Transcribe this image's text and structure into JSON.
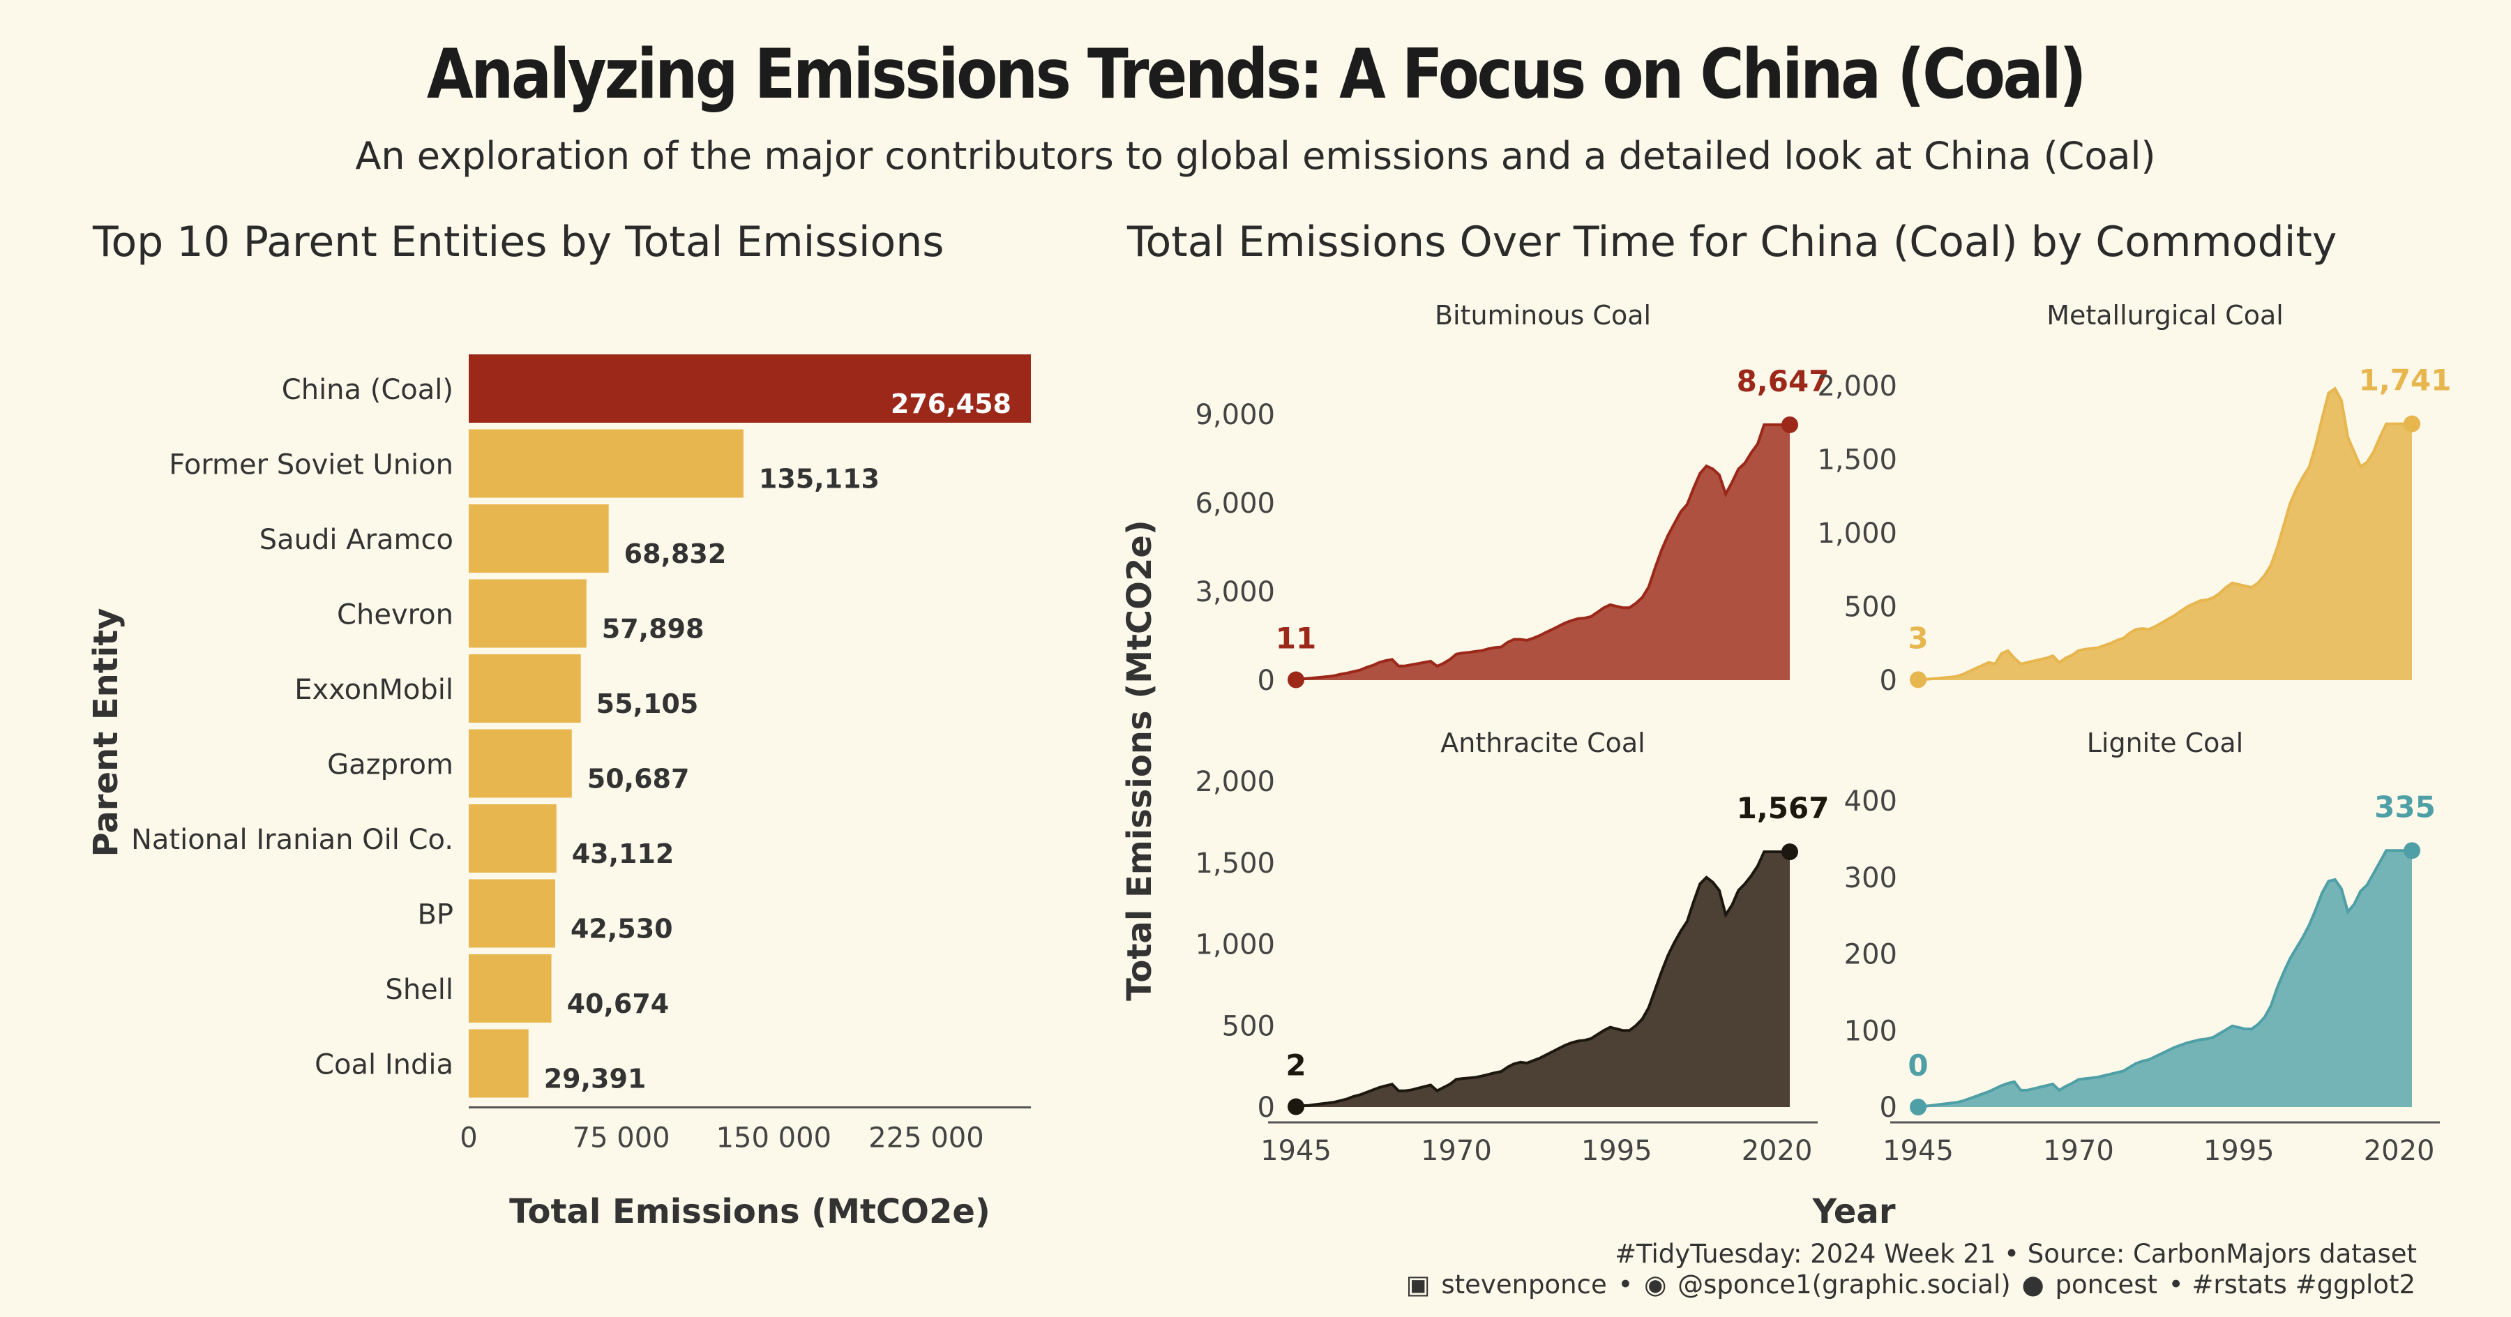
{
  "title": "Analyzing Emissions Trends: A Focus on China (Coal)",
  "subtitle": "An exploration of the major contributors to global emissions and a detailed look at China (Coal)",
  "caption": {
    "line1": "#TidyTuesday: 2024 Week 21 • Source: CarbonMajors dataset",
    "linkedin": "stevenponce",
    "sep1": "•",
    "mastodon": "@sponce1(graphic.social)",
    "github": "poncest",
    "tail": "• #rstats #ggplot2"
  },
  "chart_data": [
    {
      "type": "bar",
      "orientation": "horizontal",
      "title": "Top 10 Parent Entities by Total Emissions",
      "xlabel": "Total Emissions (MtCO2e)",
      "ylabel": "Parent Entity",
      "xlim": [
        0,
        276458
      ],
      "xticks": [
        0,
        75000,
        150000,
        225000
      ],
      "xtick_labels": [
        "0",
        "75 000",
        "150 000",
        "225 000"
      ],
      "categories": [
        "China (Coal)",
        "Former Soviet Union",
        "Saudi Aramco",
        "Chevron",
        "ExxonMobil",
        "Gazprom",
        "National Iranian Oil Co.",
        "BP",
        "Shell",
        "Coal India"
      ],
      "values": [
        276458,
        135113,
        68832,
        57898,
        55105,
        50687,
        43112,
        42530,
        40674,
        29391
      ],
      "value_labels": [
        "276,458",
        "135,113",
        "68,832",
        "57,898",
        "55,105",
        "50,687",
        "43,112",
        "42,530",
        "40,674",
        "29,391"
      ],
      "highlight_color": "#9b2819",
      "bar_color": "#e8b64f"
    },
    {
      "type": "area",
      "title": "Total Emissions Over Time for China (Coal) by Commodity",
      "xlabel": "Year",
      "ylabel": "Total Emissions (MtCO2e)",
      "xticks": [
        1945,
        1970,
        1995,
        2020
      ],
      "panels": [
        {
          "name": "Bituminous Coal",
          "color": "#9b2819",
          "fill": "#ae5141",
          "ylim": [
            0,
            9000
          ],
          "yticks": [
            0,
            3000,
            6000,
            9000
          ],
          "ytick_labels": [
            "0",
            "3,000",
            "6,000",
            "9,000"
          ],
          "start_label": "11",
          "end_label": "8,647",
          "x": [
            1945,
            1946,
            1947,
            1948,
            1949,
            1950,
            1951,
            1952,
            1953,
            1954,
            1955,
            1956,
            1957,
            1958,
            1959,
            1960,
            1961,
            1962,
            1963,
            1964,
            1965,
            1966,
            1967,
            1968,
            1969,
            1970,
            1971,
            1972,
            1973,
            1974,
            1975,
            1976,
            1977,
            1978,
            1979,
            1980,
            1981,
            1982,
            1983,
            1984,
            1985,
            1986,
            1987,
            1988,
            1989,
            1990,
            1991,
            1992,
            1993,
            1994,
            1995,
            1996,
            1997,
            1998,
            1999,
            2000,
            2001,
            2002,
            2003,
            2004,
            2005,
            2006,
            2007,
            2008,
            2009,
            2010,
            2011,
            2012,
            2013,
            2014,
            2015,
            2016,
            2017,
            2018,
            2019,
            2020,
            2021,
            2022
          ],
          "y": [
            11,
            40,
            60,
            80,
            100,
            120,
            150,
            200,
            240,
            290,
            340,
            430,
            500,
            600,
            660,
            700,
            480,
            480,
            520,
            560,
            600,
            640,
            470,
            570,
            700,
            880,
            920,
            940,
            970,
            1000,
            1060,
            1100,
            1120,
            1280,
            1380,
            1380,
            1350,
            1420,
            1510,
            1620,
            1720,
            1830,
            1940,
            2020,
            2080,
            2100,
            2150,
            2300,
            2450,
            2550,
            2500,
            2450,
            2450,
            2600,
            2800,
            3150,
            3800,
            4400,
            4900,
            5300,
            5700,
            5950,
            6500,
            7000,
            7250,
            7150,
            6950,
            6300,
            6700,
            7150,
            7350,
            7700,
            8000,
            8647,
            8647,
            8647,
            8647,
            8647
          ]
        },
        {
          "name": "Metallurgical Coal",
          "color": "#e8b64f",
          "fill": "#e9c066",
          "ylim": [
            0,
            2000
          ],
          "yticks": [
            0,
            500,
            1000,
            1500,
            2000
          ],
          "ytick_labels": [
            "0",
            "500",
            "1,000",
            "1,500",
            "2,000"
          ],
          "start_label": "3",
          "end_label": "1,741",
          "x": [
            1945,
            1946,
            1947,
            1948,
            1949,
            1950,
            1951,
            1952,
            1953,
            1954,
            1955,
            1956,
            1957,
            1958,
            1959,
            1960,
            1961,
            1962,
            1963,
            1964,
            1965,
            1966,
            1967,
            1968,
            1969,
            1970,
            1971,
            1972,
            1973,
            1974,
            1975,
            1976,
            1977,
            1978,
            1979,
            1980,
            1981,
            1982,
            1983,
            1984,
            1985,
            1986,
            1987,
            1988,
            1989,
            1990,
            1991,
            1992,
            1993,
            1994,
            1995,
            1996,
            1997,
            1998,
            1999,
            2000,
            2001,
            2002,
            2003,
            2004,
            2005,
            2006,
            2007,
            2008,
            2009,
            2010,
            2011,
            2012,
            2013,
            2014,
            2015,
            2016,
            2017,
            2018,
            2019,
            2020,
            2021,
            2022
          ],
          "y": [
            3,
            5,
            8,
            12,
            16,
            20,
            25,
            40,
            60,
            80,
            100,
            120,
            110,
            180,
            200,
            150,
            110,
            120,
            130,
            140,
            150,
            165,
            120,
            150,
            170,
            200,
            210,
            215,
            220,
            235,
            250,
            270,
            285,
            320,
            345,
            350,
            345,
            365,
            390,
            415,
            440,
            470,
            500,
            520,
            540,
            545,
            560,
            590,
            630,
            660,
            650,
            640,
            630,
            660,
            710,
            780,
            900,
            1050,
            1200,
            1300,
            1380,
            1450,
            1600,
            1780,
            1950,
            1980,
            1900,
            1650,
            1550,
            1450,
            1480,
            1550,
            1650,
            1741,
            1741,
            1741,
            1741,
            1741
          ]
        },
        {
          "name": "Anthracite Coal",
          "color": "#1c1810",
          "fill": "#4c4134",
          "ylim": [
            0,
            2000
          ],
          "yticks": [
            0,
            500,
            1000,
            1500,
            2000
          ],
          "ytick_labels": [
            "0",
            "500",
            "1,000",
            "1,500",
            "2,000"
          ],
          "start_label": "2",
          "end_label": "1,567",
          "x": [
            1945,
            1946,
            1947,
            1948,
            1949,
            1950,
            1951,
            1952,
            1953,
            1954,
            1955,
            1956,
            1957,
            1958,
            1959,
            1960,
            1961,
            1962,
            1963,
            1964,
            1965,
            1966,
            1967,
            1968,
            1969,
            1970,
            1971,
            1972,
            1973,
            1974,
            1975,
            1976,
            1977,
            1978,
            1979,
            1980,
            1981,
            1982,
            1983,
            1984,
            1985,
            1986,
            1987,
            1988,
            1989,
            1990,
            1991,
            1992,
            1993,
            1994,
            1995,
            1996,
            1997,
            1998,
            1999,
            2000,
            2001,
            2002,
            2003,
            2004,
            2005,
            2006,
            2007,
            2008,
            2009,
            2010,
            2011,
            2012,
            2013,
            2014,
            2015,
            2016,
            2017,
            2018,
            2019,
            2020,
            2021,
            2022
          ],
          "y": [
            2,
            8,
            10,
            15,
            20,
            25,
            30,
            40,
            50,
            65,
            75,
            90,
            105,
            120,
            130,
            140,
            100,
            100,
            105,
            115,
            125,
            135,
            100,
            120,
            140,
            170,
            175,
            178,
            182,
            190,
            200,
            210,
            218,
            245,
            265,
            275,
            270,
            285,
            300,
            320,
            340,
            360,
            380,
            395,
            405,
            410,
            420,
            445,
            470,
            490,
            480,
            470,
            470,
            500,
            540,
            610,
            720,
            830,
            930,
            1010,
            1080,
            1140,
            1260,
            1370,
            1410,
            1380,
            1330,
            1180,
            1240,
            1330,
            1370,
            1420,
            1480,
            1567,
            1567,
            1567,
            1567,
            1567
          ]
        },
        {
          "name": "Lignite Coal",
          "color": "#4f9fa6",
          "fill": "#74b4b7",
          "ylim": [
            0,
            400
          ],
          "yticks": [
            0,
            100,
            200,
            300,
            400
          ],
          "ytick_labels": [
            "0",
            "100",
            "200",
            "300",
            "400"
          ],
          "start_label": "0",
          "end_label": "335",
          "x": [
            1945,
            1946,
            1947,
            1948,
            1949,
            1950,
            1951,
            1952,
            1953,
            1954,
            1955,
            1956,
            1957,
            1958,
            1959,
            1960,
            1961,
            1962,
            1963,
            1964,
            1965,
            1966,
            1967,
            1968,
            1969,
            1970,
            1971,
            1972,
            1973,
            1974,
            1975,
            1976,
            1977,
            1978,
            1979,
            1980,
            1981,
            1982,
            1983,
            1984,
            1985,
            1986,
            1987,
            1988,
            1989,
            1990,
            1991,
            1992,
            1993,
            1994,
            1995,
            1996,
            1997,
            1998,
            1999,
            2000,
            2001,
            2002,
            2003,
            2004,
            2005,
            2006,
            2007,
            2008,
            2009,
            2010,
            2011,
            2012,
            2013,
            2014,
            2015,
            2016,
            2017,
            2018,
            2019,
            2020,
            2021,
            2022
          ],
          "y": [
            0,
            1,
            2,
            3,
            4,
            5,
            6,
            8,
            11,
            14,
            17,
            20,
            24,
            28,
            31,
            33,
            22,
            22,
            24,
            26,
            28,
            30,
            22,
            27,
            31,
            36,
            37,
            38,
            39,
            41,
            43,
            45,
            47,
            52,
            57,
            60,
            62,
            66,
            70,
            74,
            78,
            81,
            84,
            86,
            88,
            89,
            91,
            96,
            101,
            106,
            104,
            102,
            102,
            108,
            117,
            132,
            156,
            176,
            194,
            208,
            222,
            238,
            258,
            280,
            295,
            297,
            285,
            255,
            265,
            282,
            290,
            305,
            320,
            335,
            335,
            335,
            335,
            335
          ]
        }
      ]
    }
  ]
}
